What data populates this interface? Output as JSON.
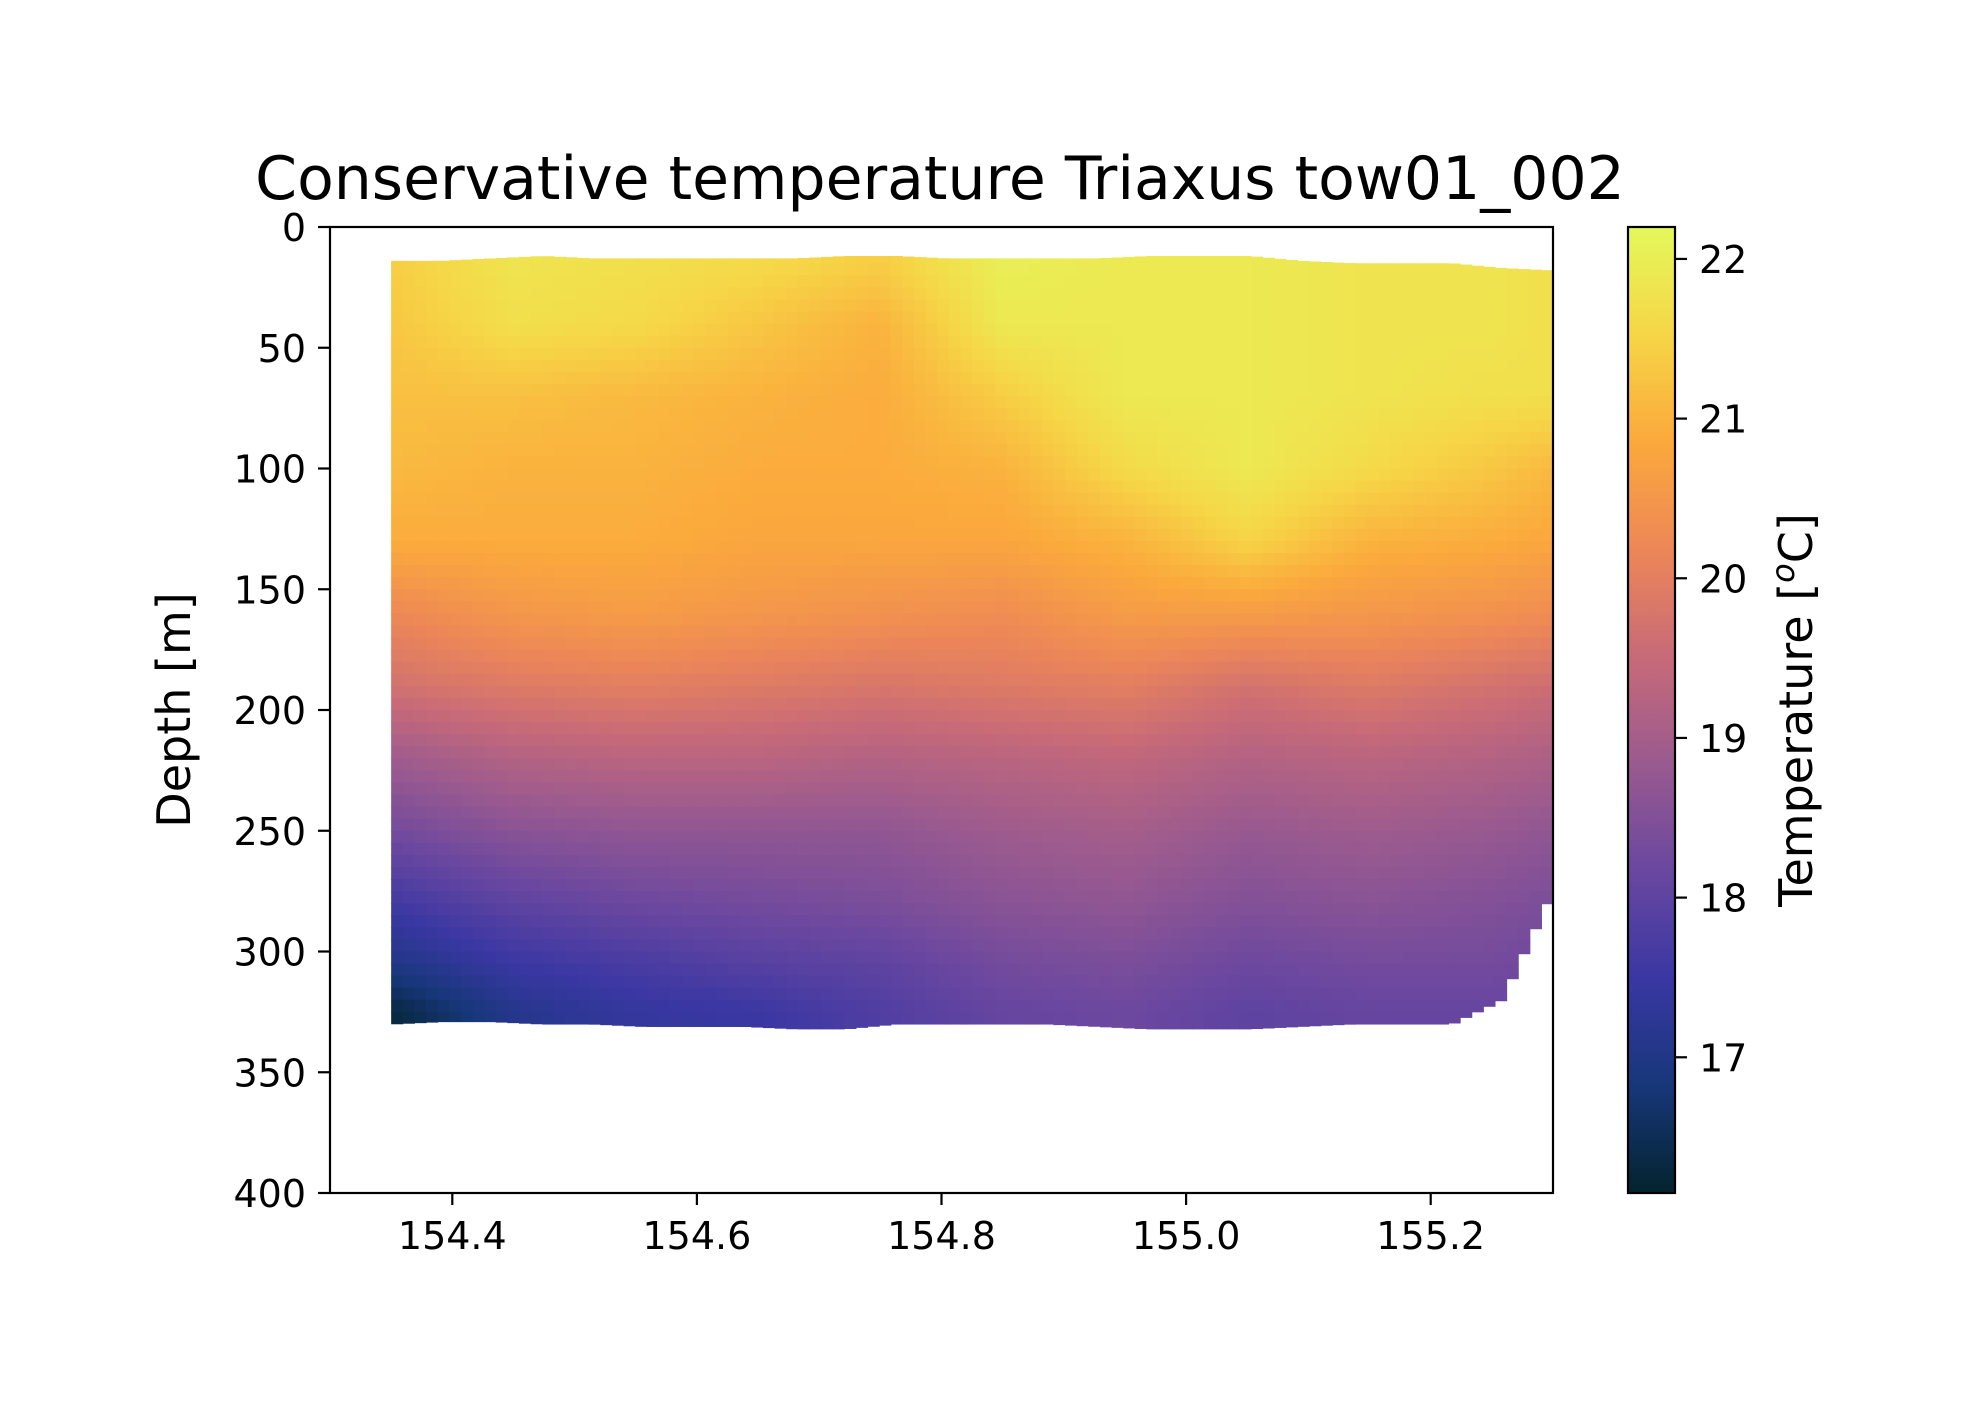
{
  "chart_data": {
    "type": "heatmap",
    "title": "Conservative temperature Triaxus tow01_002",
    "xlabel": "",
    "ylabel": "Depth [m]",
    "colorbar_label": "Temperature [°C]",
    "colorbar_label_parts": {
      "prefix": "Temperature [",
      "sup": "o",
      "suffix": "C]"
    },
    "xlim": [
      154.3,
      155.3
    ],
    "ylim": [
      400,
      0
    ],
    "y_inverted": true,
    "xticks": [
      154.4,
      154.6,
      154.8,
      155.0,
      155.2
    ],
    "xtick_labels": [
      "154.4",
      "154.6",
      "154.8",
      "155.0",
      "155.2"
    ],
    "yticks": [
      0,
      50,
      100,
      150,
      200,
      250,
      300,
      350,
      400
    ],
    "ytick_labels": [
      "0",
      "50",
      "100",
      "150",
      "200",
      "250",
      "300",
      "350",
      "400"
    ],
    "clim": [
      16.15,
      22.2
    ],
    "colorbar_ticks": [
      17,
      18,
      19,
      20,
      21,
      22
    ],
    "colorbar_tick_labels": [
      "17",
      "18",
      "19",
      "20",
      "21",
      "22"
    ],
    "colormap": "thermal",
    "colormap_stops": [
      "#04232e",
      "#17377a",
      "#3a37a3",
      "#6a47a0",
      "#9a5a8f",
      "#c86a78",
      "#ed8757",
      "#fba93c",
      "#f6d646",
      "#e4f85c"
    ],
    "grid": false,
    "data_extent": {
      "x": [
        154.35,
        155.3
      ],
      "top_depth": [
        14,
        14,
        13,
        12,
        13,
        13,
        13,
        13,
        13,
        12,
        12,
        13,
        13,
        13,
        13,
        12,
        12,
        12,
        14,
        15,
        15,
        15,
        17,
        18
      ],
      "bottom_depth": [
        330,
        329,
        329,
        330,
        330,
        331,
        331,
        331,
        332,
        332,
        330,
        330,
        330,
        330,
        331,
        332,
        332,
        332,
        331,
        330,
        330,
        330,
        320,
        275
      ]
    },
    "temperature_field": {
      "x": [
        154.35,
        154.45,
        154.55,
        154.65,
        154.75,
        154.85,
        154.95,
        155.05,
        155.15,
        155.25,
        155.3
      ],
      "depth": [
        15,
        40,
        70,
        100,
        130,
        160,
        190,
        220,
        250,
        280,
        305,
        325
      ],
      "values": [
        [
          21.4,
          21.8,
          21.7,
          21.6,
          21.4,
          22.0,
          21.9,
          21.9,
          21.8,
          21.8,
          21.7
        ],
        [
          21.3,
          21.7,
          21.6,
          21.3,
          21.0,
          21.9,
          21.9,
          21.9,
          21.8,
          21.8,
          21.7
        ],
        [
          21.2,
          21.2,
          21.1,
          21.0,
          20.9,
          21.4,
          21.9,
          21.9,
          21.8,
          21.7,
          21.7
        ],
        [
          21.1,
          21.0,
          21.0,
          20.9,
          20.9,
          21.0,
          21.6,
          21.9,
          21.6,
          21.3,
          21.1
        ],
        [
          20.9,
          20.9,
          20.9,
          20.8,
          20.8,
          20.8,
          21.0,
          21.5,
          21.0,
          20.9,
          20.8
        ],
        [
          20.2,
          20.5,
          20.6,
          20.5,
          20.4,
          20.3,
          20.6,
          20.6,
          20.5,
          20.4,
          20.3
        ],
        [
          19.7,
          19.9,
          20.0,
          19.9,
          19.8,
          19.9,
          20.0,
          19.7,
          19.9,
          19.7,
          19.6
        ],
        [
          18.9,
          19.2,
          19.3,
          19.3,
          19.2,
          19.3,
          19.4,
          19.2,
          19.3,
          19.2,
          19.1
        ],
        [
          18.3,
          18.6,
          18.7,
          18.7,
          18.7,
          18.9,
          19.0,
          18.8,
          18.9,
          18.8,
          18.7
        ],
        [
          17.6,
          18.0,
          18.2,
          18.3,
          18.4,
          18.6,
          18.7,
          18.5,
          18.6,
          18.5,
          18.4
        ],
        [
          17.0,
          17.5,
          17.7,
          17.9,
          18.0,
          18.3,
          18.4,
          18.2,
          18.3,
          18.3,
          18.2
        ],
        [
          16.3,
          17.1,
          17.4,
          17.5,
          17.8,
          18.1,
          18.2,
          18.0,
          18.1,
          18.1,
          18.1
        ]
      ]
    }
  }
}
